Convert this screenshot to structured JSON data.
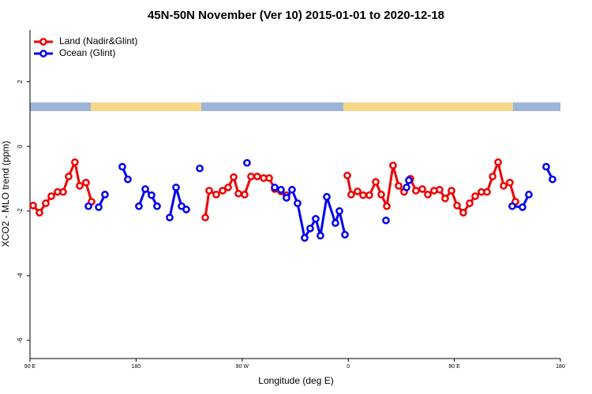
{
  "chart_data": {
    "type": "line",
    "title": "45N-50N November (Ver 10)   2015-01-01 to 2020-12-18",
    "x_label": "Longitude (deg E)",
    "y_label": "XCO2 - MLO trend (ppm)",
    "xlim": [
      90,
      540
    ],
    "xticks": [
      {
        "value": 90,
        "label": "90 E"
      },
      180,
      {
        "value": 270,
        "label": "90 W"
      },
      {
        "value": 360,
        "label": "0"
      },
      {
        "value": 450,
        "label": "90 E"
      },
      {
        "value": 540,
        "label": "180"
      }
    ],
    "ylim": [
      -6.56,
      3.6
    ],
    "yticks": [
      -6,
      -4,
      -2,
      0,
      2
    ],
    "legend": "top-left",
    "series": [
      {
        "name": "Land (Nadir&Glint)",
        "color": "#ee0000",
        "x": [
          92.7,
          98.0,
          103.4,
          108.1,
          113.4,
          118.1,
          122.8,
          128.1,
          132.2,
          137.5,
          142.2,
          null,
          238.7,
          242.0,
          248.0,
          253.4,
          258.1,
          262.8,
          266.8,
          272.1,
          277.5,
          282.8,
          288.2,
          292.9,
          297.6,
          302.9,
          307.6,
          null,
          359.2,
          362.5,
          367.9,
          372.6,
          377.9,
          383.3,
          388.0,
          392.7,
          398.0,
          402.7,
          407.4,
          412.7,
          417.4,
          422.8,
          427.5,
          432.8,
          437.5,
          442.2,
          447.6,
          452.3,
          457.6,
          463.0,
          467.7,
          473.0,
          477.7,
          482.5,
          487.1,
          491.8,
          497.1,
          501.8
        ],
        "values": [
          -1.83,
          -2.05,
          -1.76,
          -1.54,
          -1.41,
          -1.41,
          -0.93,
          -0.49,
          -1.22,
          -1.12,
          -1.71,
          null,
          -2.2,
          -1.37,
          -1.49,
          -1.37,
          -1.27,
          -0.95,
          -1.46,
          -1.49,
          -0.93,
          -0.93,
          -0.98,
          -0.98,
          -1.32,
          -1.39,
          -1.51,
          null,
          -0.9,
          -1.49,
          -1.39,
          -1.51,
          -1.51,
          -1.1,
          -1.49,
          -1.85,
          -0.59,
          -1.22,
          -1.41,
          -1.0,
          -1.37,
          -1.32,
          -1.49,
          -1.37,
          -1.34,
          -1.61,
          -1.37,
          -1.83,
          -2.05,
          -1.76,
          -1.54,
          -1.41,
          -1.41,
          -0.93,
          -0.49,
          -1.22,
          -1.12,
          -1.71
        ]
      },
      {
        "name": "Ocean (Glint)",
        "color": "#0000ee",
        "x": [
          139.6,
          null,
          148.3,
          153.6,
          null,
          168.3,
          173.0,
          null,
          182.4,
          187.8,
          193.1,
          197.8,
          null,
          208.5,
          213.9,
          218.6,
          222.6,
          null,
          234.0,
          null,
          274.1,
          null,
          297.6,
          302.9,
          307.6,
          312.3,
          317.0,
          323.0,
          327.7,
          332.4,
          336.4,
          341.8,
          349.1,
          352.5,
          357.2,
          null,
          392.0,
          null,
          409.4,
          411.4,
          null,
          499.1,
          507.8,
          513.2,
          null,
          527.9,
          533.3
        ],
        "values": [
          -1.85,
          null,
          -1.88,
          -1.49,
          null,
          -0.63,
          -1.02,
          null,
          -1.85,
          -1.32,
          -1.51,
          -1.85,
          null,
          -2.2,
          -1.27,
          -1.85,
          -1.95,
          null,
          -0.68,
          null,
          -0.51,
          null,
          -1.27,
          -1.34,
          -1.59,
          -1.34,
          -1.76,
          -2.83,
          -2.54,
          -2.24,
          -2.76,
          -1.56,
          -2.37,
          -2.0,
          -2.73,
          null,
          -2.29,
          null,
          -1.27,
          -1.05,
          null,
          -1.85,
          -1.88,
          -1.49,
          null,
          -0.63,
          -1.02
        ]
      }
    ]
  }
}
